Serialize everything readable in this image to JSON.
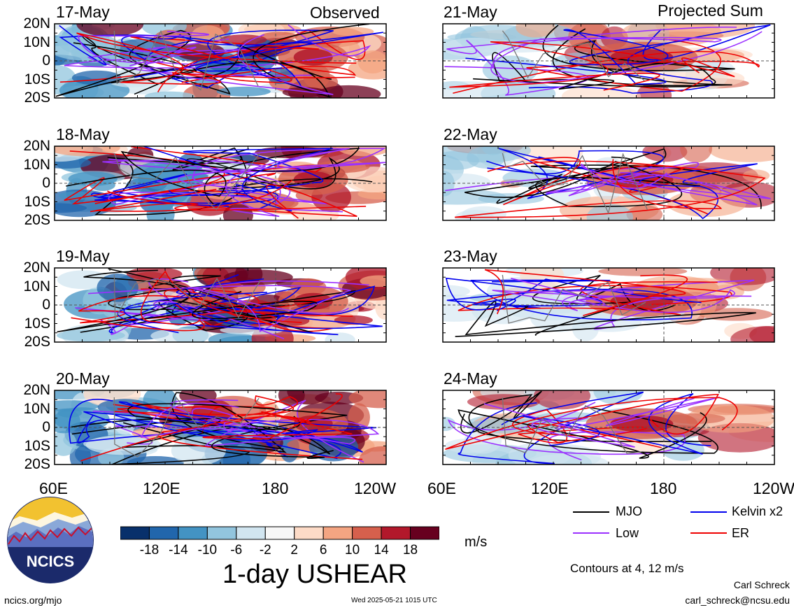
{
  "headers": {
    "left": "Observed",
    "right": "Projected Sum"
  },
  "panels": {
    "left": [
      "17-May",
      "18-May",
      "19-May",
      "20-May"
    ],
    "right": [
      "21-May",
      "22-May",
      "23-May",
      "24-May"
    ]
  },
  "lat_ticks": [
    "20N",
    "10N",
    "0",
    "10S",
    "20S"
  ],
  "lon_ticks": [
    "60E",
    "120E",
    "180",
    "120W"
  ],
  "colorbar": {
    "tick_labels": [
      "-18",
      "-14",
      "-10",
      "-6",
      "-2",
      "2",
      "6",
      "10",
      "14",
      "18"
    ],
    "colors": [
      "#08306b",
      "#2166ac",
      "#4393c3",
      "#92c5de",
      "#d1e5f0",
      "#f7f7f7",
      "#fddbc7",
      "#f4a582",
      "#d6604d",
      "#b2182b",
      "#67001f"
    ],
    "units": "m/s",
    "title": "1-day USHEAR"
  },
  "legend": [
    {
      "label": "MJO",
      "color": "#000000"
    },
    {
      "label": "Kelvin x2",
      "color": "#0000ee"
    },
    {
      "label": "Low",
      "color": "#9b30ff"
    },
    {
      "label": "ER",
      "color": "#ee0000"
    }
  ],
  "contour_note": "Contours at 4, 12 m/s",
  "logo_text": "NCICS",
  "footer": {
    "url": "ncics.org/mjo",
    "timestamp": "Wed 2025-05-21 1015 UTC",
    "author": "Carl Schreck",
    "email": "carl_schreck@ncsu.edu"
  },
  "chart_data": {
    "type": "heatmap",
    "variable": "1-day USHEAR",
    "units": "m/s",
    "x_range": [
      "60E",
      "120W"
    ],
    "y_range": [
      "20S",
      "20N"
    ],
    "color_levels": [
      -18,
      -14,
      -10,
      -6,
      -2,
      2,
      6,
      10,
      14,
      18
    ],
    "contour_levels": [
      4,
      12
    ],
    "panel_dates_observed": [
      "17-May",
      "18-May",
      "19-May",
      "20-May"
    ],
    "panel_dates_projected": [
      "21-May",
      "22-May",
      "23-May",
      "24-May"
    ]
  }
}
